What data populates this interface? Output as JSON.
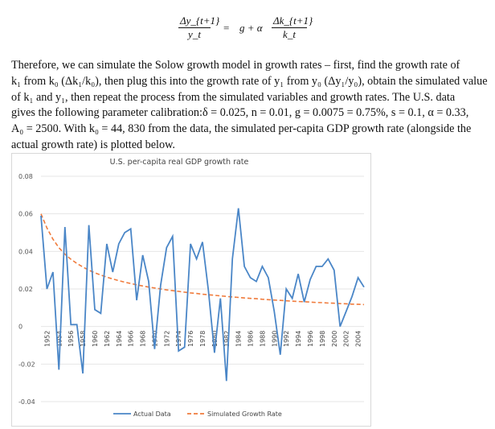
{
  "equation": {
    "lhs_num": "Δy_{t+1}",
    "lhs_den": "y_t",
    "equals": "=",
    "rhs_term": "g + α",
    "rhs_num": "Δk_{t+1}",
    "rhs_den": "k_t"
  },
  "paragraph": [
    "Therefore, we can simulate the Solow growth model in growth rates – first, find the growth rate of",
    "k₁ from k₀ (Δk₁/k₀), then plug this into the growth rate of y₁ from y₀ (Δy₁/y₀), obtain the simulated value",
    "of k₁ and y₁, then repeat the process from the simulated variables and growth rates.  The U.S. data",
    "gives the following parameter calibration:δ = 0.025, n = 0.01, g = 0.0075 = 0.75%, s = 0.1, α = 0.33,",
    "A₀ = 2500. With k₀ = 44, 830 from the data, the simulated per-capita GDP growth rate (alongside the",
    "actual growth rate) is plotted below."
  ],
  "chart_data": {
    "type": "line",
    "title": "U.S. per-capita real GDP growth rate",
    "xlabel": "",
    "ylabel": "",
    "ylim": [
      -0.04,
      0.08
    ],
    "yticks": [
      "0.08",
      "0.06",
      "0.04",
      "0.02",
      "0",
      "-0.02",
      "-0.04"
    ],
    "x": [
      1951,
      1952,
      1953,
      1954,
      1955,
      1956,
      1957,
      1958,
      1959,
      1960,
      1961,
      1962,
      1963,
      1964,
      1965,
      1966,
      1967,
      1968,
      1969,
      1970,
      1971,
      1972,
      1973,
      1974,
      1975,
      1976,
      1977,
      1978,
      1979,
      1980,
      1981,
      1982,
      1983,
      1984,
      1985,
      1986,
      1987,
      1988,
      1989,
      1990,
      1991,
      1992,
      1993,
      1994,
      1995,
      1996,
      1997,
      1998,
      1999,
      2000,
      2001,
      2002,
      2003,
      2004,
      2005
    ],
    "xtick_labels": [
      "1952",
      "1954",
      "1956",
      "1958",
      "1960",
      "1962",
      "1964",
      "1966",
      "1968",
      "1970",
      "1972",
      "1974",
      "1976",
      "1978",
      "1980",
      "1982",
      "1984",
      "1986",
      "1988",
      "1990",
      "1992",
      "1994",
      "1996",
      "1998",
      "2000",
      "2002",
      "2004"
    ],
    "series": [
      {
        "name": "Actual Data",
        "color": "#4a86c7",
        "style": "solid",
        "values": [
          0.059,
          0.02,
          0.029,
          -0.023,
          0.053,
          0.001,
          0.001,
          -0.025,
          0.054,
          0.009,
          0.007,
          0.044,
          0.029,
          0.044,
          0.05,
          0.052,
          0.014,
          0.038,
          0.024,
          -0.012,
          0.022,
          0.042,
          0.048,
          -0.013,
          -0.011,
          0.044,
          0.036,
          0.045,
          0.019,
          -0.014,
          0.015,
          -0.029,
          0.036,
          0.063,
          0.032,
          0.026,
          0.024,
          0.032,
          0.026,
          0.008,
          -0.015,
          0.02,
          0.015,
          0.028,
          0.013,
          0.025,
          0.032,
          0.032,
          0.036,
          0.03,
          0.0,
          0.008,
          0.016,
          0.026,
          0.021
        ]
      },
      {
        "name": "Simulated Growth Rate",
        "color": "#f07b3c",
        "style": "dashed",
        "values": [
          0.06,
          0.0525,
          0.0465,
          0.042,
          0.0385,
          0.0358,
          0.0336,
          0.0317,
          0.03,
          0.0286,
          0.0274,
          0.0263,
          0.0253,
          0.0244,
          0.0236,
          0.0229,
          0.0222,
          0.0216,
          0.021,
          0.0205,
          0.02,
          0.0195,
          0.0191,
          0.0187,
          0.0183,
          0.0179,
          0.0176,
          0.0172,
          0.0169,
          0.0166,
          0.0163,
          0.016,
          0.0157,
          0.0155,
          0.0152,
          0.015,
          0.0148,
          0.0145,
          0.0143,
          0.0141,
          0.0139,
          0.0137,
          0.0135,
          0.0133,
          0.0132,
          0.013,
          0.0128,
          0.0127,
          0.0125,
          0.0124,
          0.0122,
          0.0121,
          0.0119,
          0.0118,
          0.0117
        ]
      }
    ],
    "legend_position": "bottom",
    "grid": true
  }
}
